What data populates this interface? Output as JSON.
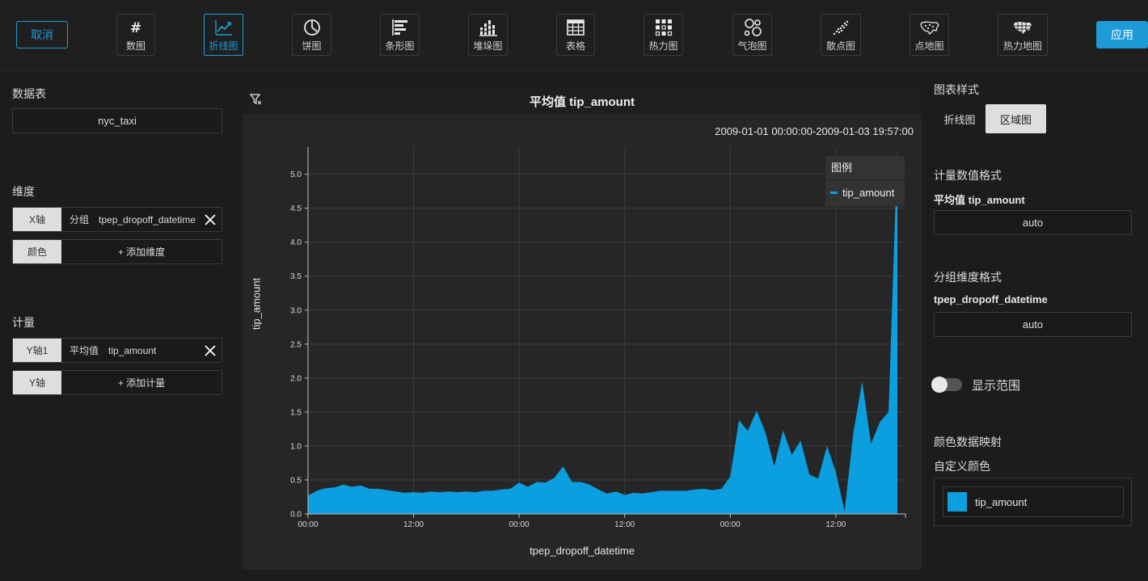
{
  "toolbar": {
    "cancel": "取消",
    "apply": "应用",
    "types": [
      {
        "label": "数图",
        "icon": "hash-icon"
      },
      {
        "label": "折线图",
        "icon": "line-chart-icon",
        "active": true
      },
      {
        "label": "饼图",
        "icon": "pie-chart-icon"
      },
      {
        "label": "条形图",
        "icon": "bar-chart-icon"
      },
      {
        "label": "堆垛图",
        "icon": "stacked-bar-icon"
      },
      {
        "label": "表格",
        "icon": "table-icon"
      },
      {
        "label": "热力图",
        "icon": "heatmap-icon"
      },
      {
        "label": "气泡图",
        "icon": "bubble-chart-icon"
      },
      {
        "label": "散点图",
        "icon": "scatter-chart-icon"
      },
      {
        "label": "点地图",
        "icon": "dot-map-icon"
      },
      {
        "label": "热力地图",
        "icon": "heat-map-icon"
      }
    ]
  },
  "left": {
    "table_title": "数据表",
    "table_name": "nyc_taxi",
    "dimension_title": "维度",
    "x_axis_tag": "X轴",
    "x_axis_kind": "分组",
    "x_axis_field": "tpep_dropoff_datetime",
    "color_tag": "颜色",
    "add_dimension": "+ 添加维度",
    "measure_title": "计量",
    "y1_tag": "Y轴1",
    "y1_agg": "平均值",
    "y1_field": "tip_amount",
    "y_tag": "Y轴",
    "add_measure": "+ 添加计量"
  },
  "chart": {
    "title": "平均值 tip_amount",
    "date_range": "2009-01-01 00:00:00-2009-01-03 19:57:00",
    "legend_title": "图例",
    "legend_item": "tip_amount",
    "accent": "#0c9fe0"
  },
  "chart_data": {
    "type": "area",
    "title": "平均值 tip_amount",
    "xlabel": "tpep_dropoff_datetime",
    "ylabel": "tip_amount",
    "x_tick_labels": [
      "00:00",
      "12:00",
      "00:00",
      "12:00",
      "00:00",
      "12:00"
    ],
    "x_tick_hours": [
      0,
      12,
      24,
      36,
      48,
      60
    ],
    "ylim": [
      0,
      5.4
    ],
    "y_ticks": [
      0.0,
      0.5,
      1.0,
      1.5,
      2.0,
      2.5,
      3.0,
      3.5,
      4.0,
      4.5,
      5.0
    ],
    "grid": true,
    "legend_position": "top-right",
    "series": [
      {
        "name": "tip_amount",
        "color": "#0c9fe0",
        "hours": [
          0,
          1,
          2,
          3,
          4,
          5,
          6,
          7,
          8,
          9,
          10,
          11,
          12,
          13,
          14,
          15,
          16,
          17,
          18,
          19,
          20,
          21,
          22,
          23,
          24,
          25,
          26,
          27,
          28,
          29,
          30,
          31,
          32,
          33,
          34,
          35,
          36,
          37,
          38,
          39,
          40,
          41,
          42,
          43,
          44,
          45,
          46,
          47,
          48,
          49,
          50,
          51,
          52,
          53,
          54,
          55,
          56,
          57,
          58,
          59,
          60,
          61,
          62,
          63,
          64,
          65,
          66,
          67
        ],
        "values": [
          0.27,
          0.34,
          0.38,
          0.39,
          0.43,
          0.4,
          0.42,
          0.37,
          0.37,
          0.35,
          0.33,
          0.31,
          0.32,
          0.31,
          0.33,
          0.32,
          0.33,
          0.32,
          0.33,
          0.32,
          0.34,
          0.34,
          0.36,
          0.37,
          0.46,
          0.4,
          0.47,
          0.46,
          0.53,
          0.7,
          0.47,
          0.47,
          0.43,
          0.36,
          0.3,
          0.33,
          0.28,
          0.31,
          0.3,
          0.32,
          0.34,
          0.34,
          0.34,
          0.34,
          0.36,
          0.37,
          0.35,
          0.37,
          0.55,
          1.38,
          1.22,
          1.52,
          1.2,
          0.7,
          1.23,
          0.87,
          1.08,
          0.58,
          0.52,
          1.0,
          0.62,
          0.04,
          1.2,
          1.95,
          1.03,
          1.35,
          1.5,
          5.4
        ]
      }
    ]
  },
  "right": {
    "style_title": "图表样式",
    "style_line": "折线图",
    "style_area": "区域图",
    "measure_format_title": "计量数值格式",
    "measure_format_label": "平均值 tip_amount",
    "measure_format_value": "auto",
    "dim_format_title": "分组维度格式",
    "dim_format_label": "tpep_dropoff_datetime",
    "dim_format_value": "auto",
    "show_range": "显示范围",
    "color_map_title": "颜色数据映射",
    "custom_color_title": "自定义颜色",
    "color_item": "tip_amount"
  }
}
